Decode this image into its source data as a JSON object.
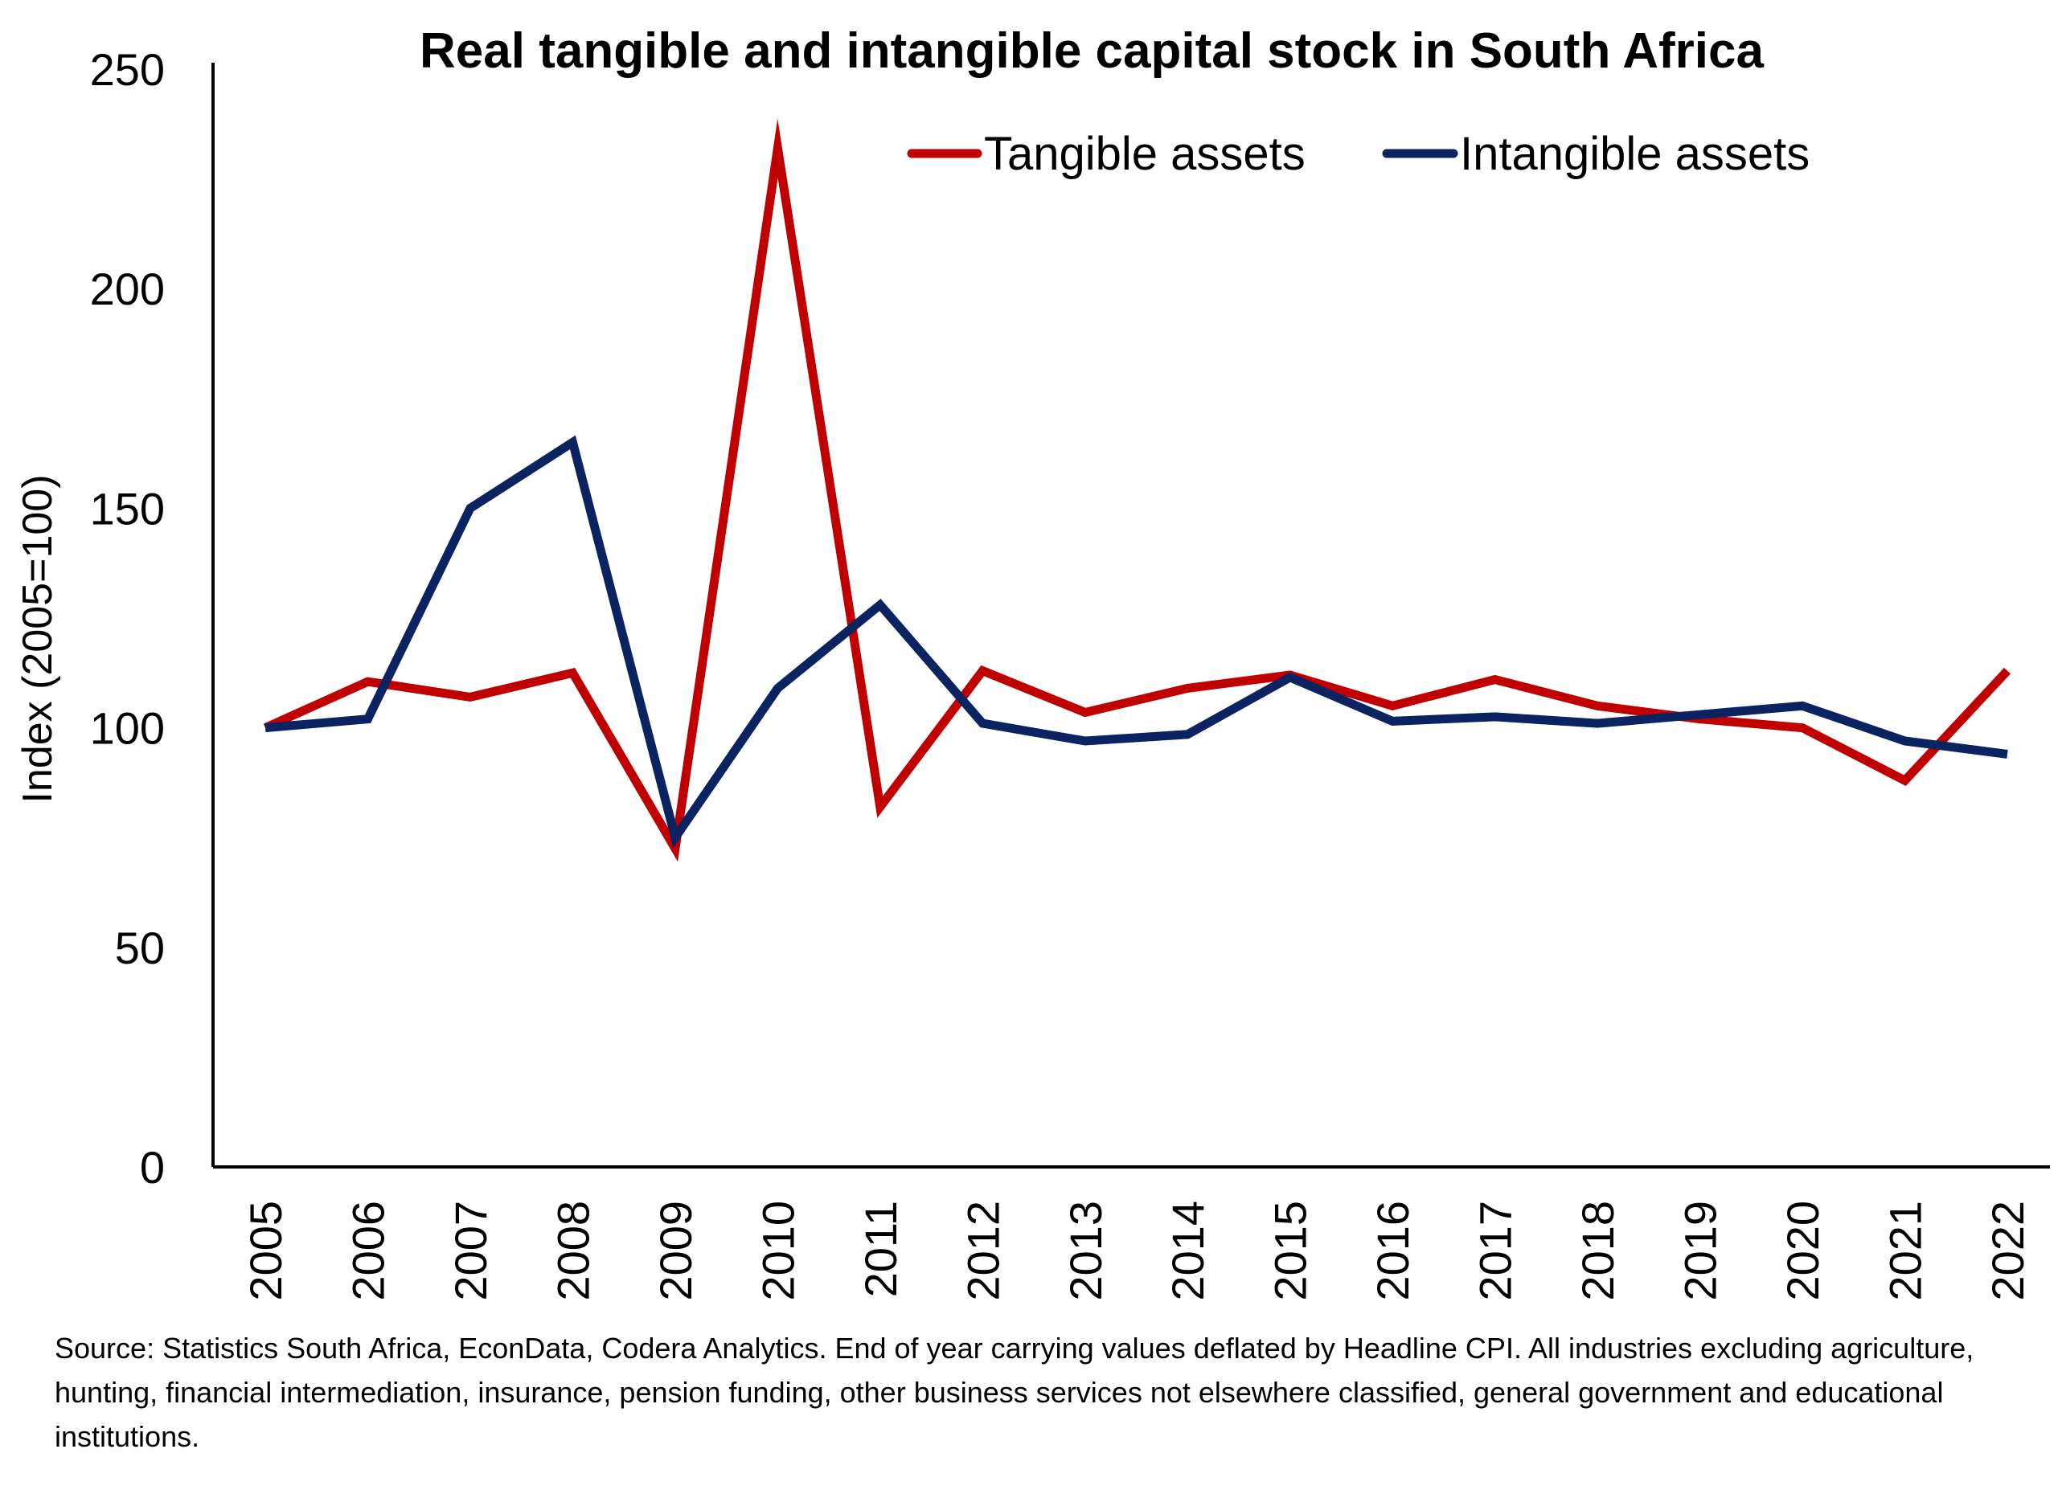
{
  "chart_data": {
    "type": "line",
    "title": "Real tangible and intangible capital stock in South Africa",
    "xlabel": "",
    "ylabel": "Index (2005=100)",
    "ylim": [
      0,
      250
    ],
    "yticks": [
      0,
      50,
      100,
      150,
      200,
      250
    ],
    "grid": false,
    "legend_position": "top-right",
    "categories": [
      "2005",
      "2006",
      "2007",
      "2008",
      "2009",
      "2010",
      "2011",
      "2012",
      "2013",
      "2014",
      "2015",
      "2016",
      "2017",
      "2018",
      "2019",
      "2020",
      "2021",
      "2022"
    ],
    "series": [
      {
        "name": "Tangible assets",
        "color": "#c00000",
        "values": [
          100,
          110.5,
          107,
          112.5,
          72.5,
          232,
          82,
          113,
          103.5,
          109,
          112,
          105,
          111,
          105,
          102,
          100,
          88,
          113
        ]
      },
      {
        "name": "Intangible assets",
        "color": "#0b2361",
        "values": [
          100,
          102,
          150,
          165,
          75,
          109,
          128,
          101,
          97,
          98.5,
          111.5,
          101.5,
          102.5,
          101,
          103,
          105,
          97,
          94
        ]
      }
    ]
  },
  "source_note": "Source: Statistics South Africa, EconData, Codera Analytics.  End of year carrying values deflated by Headline CPI. All industries excluding agriculture, hunting, financial intermediation, insurance, pension funding, other business services not elsewhere classified, general government and educational institutions."
}
